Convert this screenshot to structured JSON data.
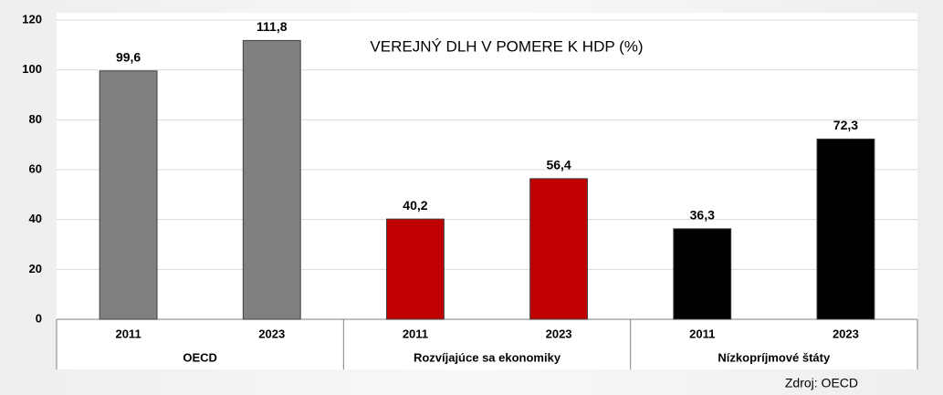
{
  "chart_data": {
    "type": "grouped-bar",
    "title": "VEREJNÝ DLH V POMERE K HDP (%)",
    "categories": [
      "2011",
      "2023"
    ],
    "series": [
      {
        "name": "OECD",
        "color": "#808080",
        "values": [
          99.6,
          111.8
        ],
        "value_labels": [
          "99,6",
          "111,8"
        ]
      },
      {
        "name": "Rozvíjajúce sa ekonomiky",
        "color": "#c00000",
        "values": [
          40.2,
          56.4
        ],
        "value_labels": [
          "40,2",
          "56,4"
        ]
      },
      {
        "name": "Nízkopríjmové štáty",
        "color": "#000000",
        "values": [
          36.3,
          72.3
        ],
        "value_labels": [
          "36,3",
          "72,3"
        ]
      }
    ],
    "ylim": [
      0,
      120
    ],
    "yticks": [
      0,
      20,
      40,
      60,
      80,
      100,
      120
    ],
    "grid": true,
    "source": "Zdroj: OECD"
  }
}
